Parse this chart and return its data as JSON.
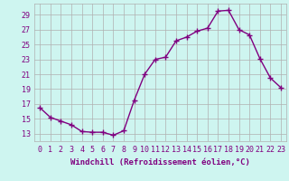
{
  "x": [
    0,
    1,
    2,
    3,
    4,
    5,
    6,
    7,
    8,
    9,
    10,
    11,
    12,
    13,
    14,
    15,
    16,
    17,
    18,
    19,
    20,
    21,
    22,
    23
  ],
  "y": [
    16.5,
    15.2,
    14.7,
    14.2,
    13.3,
    13.2,
    13.2,
    12.8,
    13.4,
    17.5,
    21.0,
    23.0,
    23.3,
    25.5,
    26.0,
    26.8,
    27.2,
    29.5,
    29.6,
    27.0,
    26.3,
    23.1,
    20.5,
    19.2
  ],
  "line_color": "#800080",
  "marker": "+",
  "bg_color": "#cef5f0",
  "grid_color": "#b0b0b0",
  "xlabel": "Windchill (Refroidissement éolien,°C)",
  "yticks": [
    13,
    15,
    17,
    19,
    21,
    23,
    25,
    27,
    29
  ],
  "xticks": [
    0,
    1,
    2,
    3,
    4,
    5,
    6,
    7,
    8,
    9,
    10,
    11,
    12,
    13,
    14,
    15,
    16,
    17,
    18,
    19,
    20,
    21,
    22,
    23
  ],
  "ylim": [
    12.0,
    30.5
  ],
  "xlim": [
    -0.5,
    23.5
  ],
  "font_color": "#800080",
  "tick_fontsize": 6.0,
  "xlabel_fontsize": 6.5,
  "marker_size": 4,
  "line_width": 1.0
}
